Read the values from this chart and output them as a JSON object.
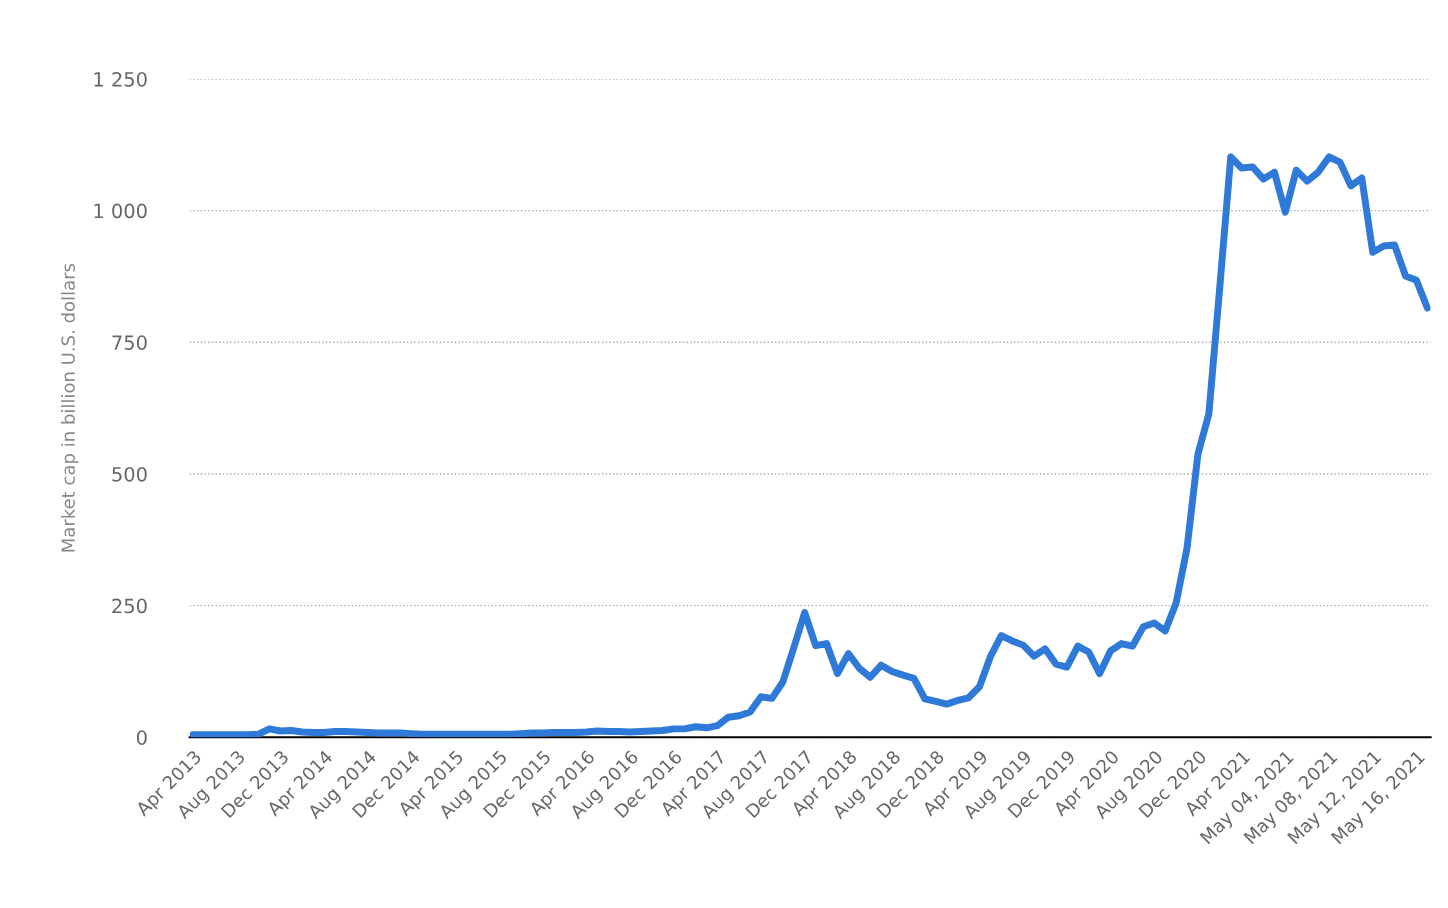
{
  "chart_data": {
    "type": "line",
    "ylabel": "Market cap in billion U.S. dollars",
    "categories": [
      "Apr 2013",
      null,
      null,
      null,
      "Aug 2013",
      null,
      null,
      null,
      "Dec 2013",
      null,
      null,
      null,
      "Apr 2014",
      null,
      null,
      null,
      "Aug 2014",
      null,
      null,
      null,
      "Dec 2014",
      null,
      null,
      null,
      "Apr 2015",
      null,
      null,
      null,
      "Aug 2015",
      null,
      null,
      null,
      "Dec 2015",
      null,
      null,
      null,
      "Apr 2016",
      null,
      null,
      null,
      "Aug 2016",
      null,
      null,
      null,
      "Dec 2016",
      null,
      null,
      null,
      "Apr 2017",
      null,
      null,
      null,
      "Aug 2017",
      null,
      null,
      null,
      "Dec 2017",
      null,
      null,
      null,
      "Apr 2018",
      null,
      null,
      null,
      "Aug 2018",
      null,
      null,
      null,
      "Dec 2018",
      null,
      null,
      null,
      "Apr 2019",
      null,
      null,
      null,
      "Aug 2019",
      null,
      null,
      null,
      "Dec 2019",
      null,
      null,
      null,
      "Apr 2020",
      null,
      null,
      null,
      "Aug 2020",
      null,
      null,
      null,
      "Dec 2020",
      null,
      null,
      null,
      "Apr 2021",
      null,
      null,
      null,
      "May 04, 2021",
      null,
      null,
      null,
      "May 08, 2021",
      null,
      null,
      null,
      "May 12, 2021",
      null,
      null,
      null,
      "May 16, 2021",
      null
    ],
    "series": [
      {
        "color": "#2f7ad9",
        "values": [
          5,
          5,
          5,
          5,
          5,
          5,
          6,
          16,
          12,
          13,
          10,
          9,
          9,
          11,
          11,
          10,
          9,
          8,
          8,
          8,
          7,
          6,
          6,
          6,
          6,
          6,
          6,
          6,
          6,
          6,
          7,
          8,
          8,
          9,
          9,
          9,
          10,
          12,
          11,
          11,
          10,
          11,
          12,
          13,
          16,
          16,
          20,
          18,
          22,
          38,
          41,
          48,
          77,
          74,
          105,
          170,
          237,
          174,
          178,
          121,
          159,
          131,
          114,
          137,
          125,
          118,
          112,
          73,
          68,
          63,
          70,
          75,
          96,
          153,
          193,
          183,
          175,
          154,
          168,
          139,
          133,
          173,
          162,
          121,
          164,
          178,
          173,
          210,
          217,
          202,
          255,
          359,
          538,
          614,
          855,
          1102,
          1081,
          1083,
          1060,
          1073,
          997,
          1077,
          1056,
          1073,
          1102,
          1092,
          1047,
          1062,
          921,
          933,
          935,
          876,
          868,
          815
        ]
      }
    ],
    "ylim": [
      0,
      1250
    ],
    "yticks": [
      0,
      250,
      500,
      750,
      {
        "value": 1000,
        "label": "1 000"
      },
      {
        "value": 1250,
        "label": "1 250"
      }
    ],
    "grid": "y",
    "legend": false,
    "marker": "none",
    "line_style": "solid"
  }
}
